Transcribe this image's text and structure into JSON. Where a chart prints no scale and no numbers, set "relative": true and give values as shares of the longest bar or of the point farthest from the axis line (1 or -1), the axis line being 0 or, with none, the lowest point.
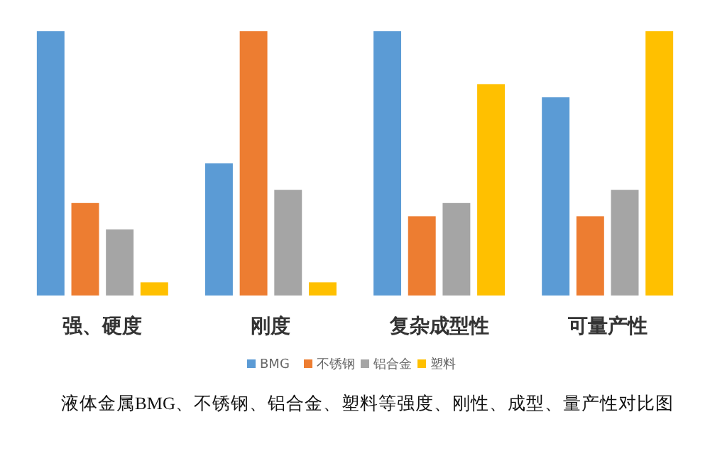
{
  "chart_data": {
    "type": "bar",
    "relative": true,
    "categories": [
      "强、硬度",
      "刚度",
      "复杂成型性",
      "可量产性"
    ],
    "series": [
      {
        "name": "BMG",
        "color": "#5b9bd5",
        "values": [
          1,
          0.5,
          1,
          0.75
        ]
      },
      {
        "name": "不锈钢",
        "color": "#ed7d31",
        "values": [
          0.35,
          1,
          0.3,
          0.3
        ]
      },
      {
        "name": "铝合金",
        "color": "#a5a5a5",
        "values": [
          0.25,
          0.4,
          0.35,
          0.4
        ]
      },
      {
        "name": "塑料",
        "color": "#ffc000",
        "values": [
          0.05,
          0.05,
          0.8,
          1
        ]
      }
    ],
    "legend": "bottom",
    "grid": false,
    "annotations": [
      "液体金属BMG、不锈钢、铝合金、塑料等强度、刚性、成型、量产性对比图"
    ]
  }
}
